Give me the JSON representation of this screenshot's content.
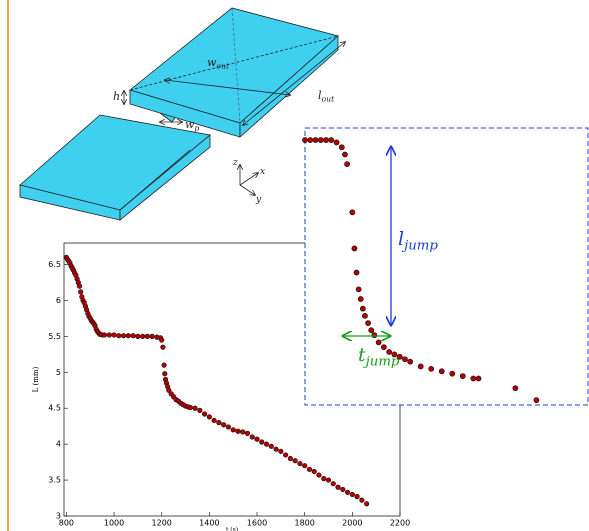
{
  "chart_data": [
    {
      "type": "scatter",
      "x_label": "t (s)",
      "y_label": "L (mm)",
      "color": "#b00000",
      "xlim": [
        790,
        2200
      ],
      "ylim": [
        3,
        6.8
      ],
      "xticks": [
        800,
        1000,
        1200,
        1400,
        1600,
        1800,
        2000,
        2200
      ],
      "yticks": [
        3,
        3.5,
        4,
        4.5,
        5,
        5.5,
        6,
        6.5
      ],
      "x": [
        800,
        805,
        810,
        815,
        820,
        825,
        830,
        835,
        840,
        845,
        850,
        855,
        860,
        865,
        870,
        875,
        880,
        885,
        890,
        895,
        900,
        905,
        910,
        915,
        920,
        925,
        930,
        935,
        940,
        950,
        960,
        980,
        1000,
        1020,
        1040,
        1060,
        1080,
        1100,
        1120,
        1140,
        1160,
        1180,
        1195,
        1200,
        1205,
        1210,
        1213,
        1216,
        1220,
        1225,
        1230,
        1240,
        1250,
        1260,
        1270,
        1280,
        1290,
        1300,
        1310,
        1320,
        1340,
        1360,
        1380,
        1400,
        1420,
        1440,
        1460,
        1480,
        1500,
        1520,
        1540,
        1560,
        1580,
        1600,
        1620,
        1640,
        1660,
        1680,
        1700,
        1720,
        1740,
        1760,
        1780,
        1800,
        1820,
        1840,
        1860,
        1880,
        1900,
        1920,
        1940,
        1960,
        1980,
        2000,
        2020,
        2040,
        2060
      ],
      "y": [
        6.6,
        6.57,
        6.55,
        6.52,
        6.48,
        6.45,
        6.42,
        6.38,
        6.35,
        6.3,
        6.25,
        6.2,
        6.12,
        6.05,
        6.0,
        5.97,
        5.92,
        5.87,
        5.82,
        5.78,
        5.75,
        5.72,
        5.7,
        5.68,
        5.65,
        5.6,
        5.57,
        5.55,
        5.53,
        5.52,
        5.52,
        5.52,
        5.52,
        5.51,
        5.51,
        5.51,
        5.51,
        5.5,
        5.5,
        5.5,
        5.5,
        5.49,
        5.48,
        5.45,
        5.35,
        5.1,
        4.98,
        4.9,
        4.85,
        4.8,
        4.75,
        4.7,
        4.66,
        4.62,
        4.6,
        4.57,
        4.55,
        4.53,
        4.52,
        4.51,
        4.5,
        4.47,
        4.42,
        4.38,
        4.33,
        4.3,
        4.27,
        4.24,
        4.2,
        4.18,
        4.17,
        4.15,
        4.1,
        4.07,
        4.03,
        4.0,
        3.97,
        3.93,
        3.9,
        3.85,
        3.8,
        3.77,
        3.73,
        3.7,
        3.65,
        3.62,
        3.57,
        3.52,
        3.5,
        3.45,
        3.4,
        3.37,
        3.33,
        3.3,
        3.27,
        3.22,
        3.17
      ]
    },
    {
      "type": "scatter",
      "color": "#b00000",
      "xlim": [
        1160,
        1430
      ],
      "ylim": [
        4.4,
        5.55
      ],
      "x": [
        1160,
        1165,
        1170,
        1175,
        1180,
        1185,
        1190,
        1195,
        1198,
        1200,
        1205,
        1207,
        1209,
        1211,
        1213,
        1215,
        1217,
        1220,
        1223,
        1226,
        1230,
        1235,
        1240,
        1245,
        1250,
        1255,
        1260,
        1270,
        1280,
        1290,
        1300,
        1310,
        1320,
        1325,
        1360,
        1380
      ],
      "y": [
        5.5,
        5.5,
        5.5,
        5.5,
        5.5,
        5.5,
        5.49,
        5.47,
        5.44,
        5.4,
        5.2,
        5.05,
        4.95,
        4.88,
        4.84,
        4.8,
        4.77,
        4.74,
        4.71,
        4.69,
        4.66,
        4.64,
        4.62,
        4.61,
        4.6,
        4.59,
        4.58,
        4.56,
        4.55,
        4.54,
        4.53,
        4.52,
        4.51,
        4.51,
        4.47,
        4.42
      ],
      "annotations": [
        {
          "symbol": "l",
          "subscript": "jump",
          "color": "#1a3fd6"
        },
        {
          "symbol": "t",
          "subscript": "jump",
          "color": "#1a9a1a"
        }
      ]
    }
  ],
  "diagram": {
    "labels": [
      {
        "symbol": "w",
        "subscript": "out"
      },
      {
        "symbol": "l",
        "subscript": "out"
      },
      {
        "symbol": "h",
        "subscript": ""
      },
      {
        "symbol": "w",
        "subscript": "p"
      },
      {
        "symbol": "z",
        "subscript": ""
      },
      {
        "symbol": "x",
        "subscript": ""
      },
      {
        "symbol": "y",
        "subscript": ""
      }
    ]
  }
}
